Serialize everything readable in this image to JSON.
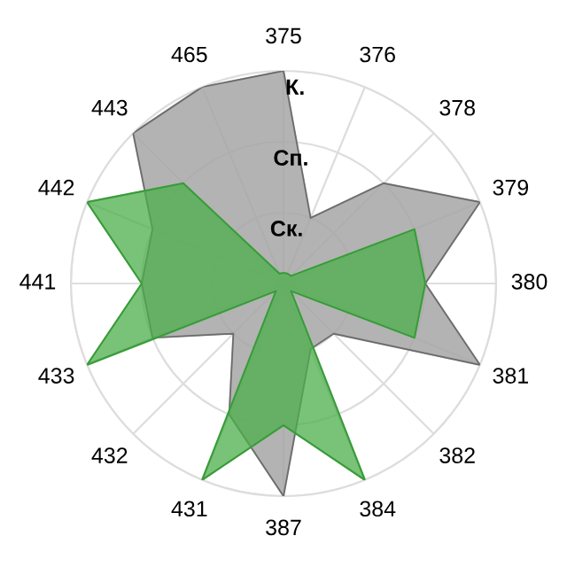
{
  "chart_data": {
    "type": "radar",
    "categories": [
      "375",
      "376",
      "378",
      "379",
      "380",
      "381",
      "382",
      "384",
      "387",
      "431",
      "432",
      "433",
      "441",
      "442",
      "443",
      "465"
    ],
    "series": [
      {
        "color": "#a6a6a6",
        "values": [
          3,
          1,
          2,
          3,
          2,
          3,
          1,
          1,
          3,
          2,
          1,
          2,
          2,
          2,
          3,
          3
        ]
      },
      {
        "color": "#4caf4c",
        "values": [
          0.15,
          0.15,
          0.15,
          2,
          2,
          2,
          0.15,
          3,
          2,
          3,
          0.15,
          3,
          2,
          3,
          2,
          0.15
        ]
      }
    ],
    "ylim": [
      0,
      3
    ],
    "yticks": [
      {
        "value": 1,
        "label": "Ск."
      },
      {
        "value": 2,
        "label": "Сп."
      },
      {
        "value": 3,
        "label": "К."
      }
    ],
    "grid": true
  }
}
